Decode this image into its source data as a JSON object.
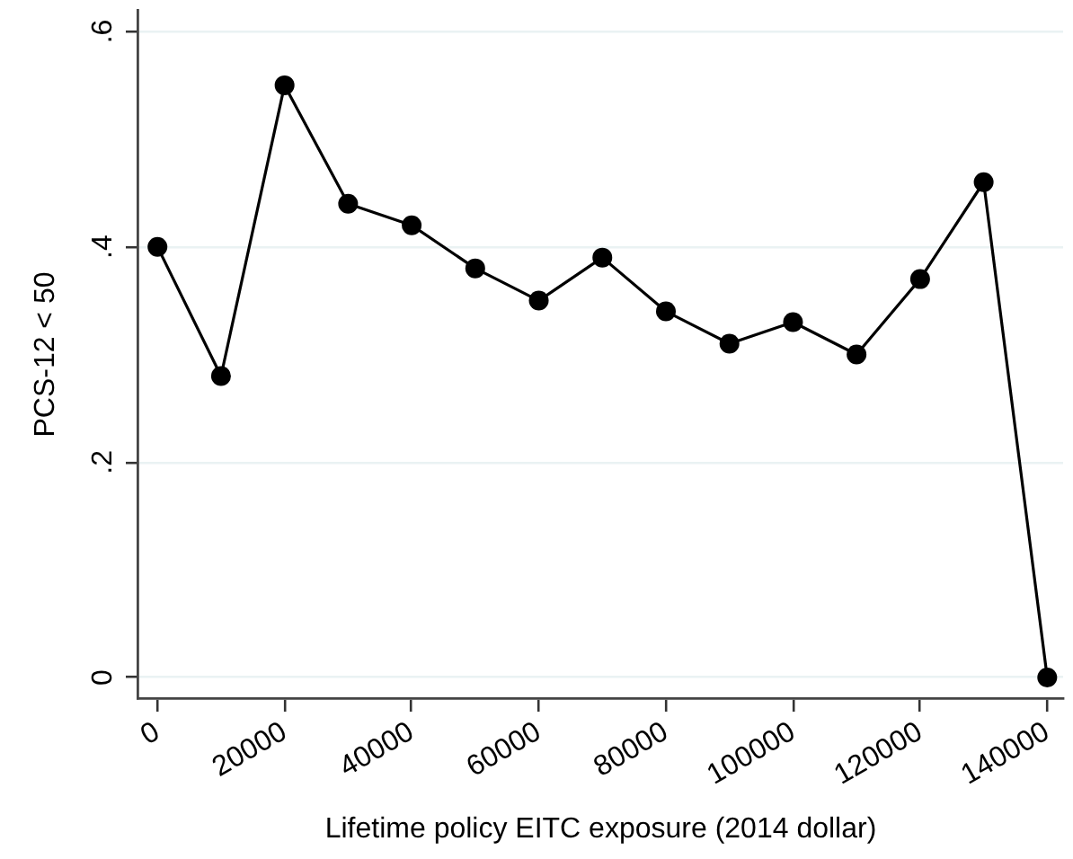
{
  "chart_data": {
    "type": "line",
    "xlabel": "Lifetime policy EITC exposure (2014 dollar)",
    "ylabel": "PCS-12 < 50",
    "x": [
      0,
      10000,
      20000,
      30000,
      40000,
      50000,
      60000,
      70000,
      80000,
      90000,
      100000,
      110000,
      120000,
      130000,
      140000
    ],
    "series": [
      {
        "color": "#000000",
        "values": [
          0.4,
          0.28,
          0.55,
          0.44,
          0.42,
          0.38,
          0.35,
          0.39,
          0.34,
          0.31,
          0.33,
          0.3,
          0.37,
          0.46,
          0
        ]
      }
    ],
    "xlim": [
      -3000,
      142500
    ],
    "ylim": [
      -0.02,
      0.62
    ],
    "xticks": [
      0,
      20000,
      40000,
      60000,
      80000,
      100000,
      120000,
      140000
    ],
    "yticks": [
      0,
      {
        "value": 0.2,
        "label": ".2"
      },
      {
        "value": 0.4,
        "label": ".4"
      },
      {
        "value": 0.6,
        "label": ".6"
      }
    ],
    "grid": "y",
    "marker": "circle",
    "line_style": "solid"
  }
}
